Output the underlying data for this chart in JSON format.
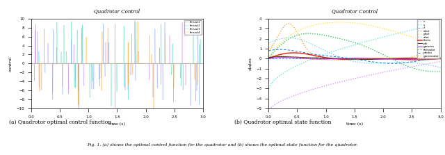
{
  "fig_width": 6.4,
  "fig_height": 2.23,
  "dpi": 100,
  "left_title": "Quadrotor Control",
  "left_xlabel": "time (s)",
  "left_ylabel": "control",
  "left_xlim": [
    0,
    3
  ],
  "left_ylim": [
    -10,
    10
  ],
  "left_yticks": [
    -10,
    -8,
    -6,
    -4,
    -2,
    0,
    2,
    4,
    6,
    8,
    10
  ],
  "left_xticks": [
    0,
    0.5,
    1,
    1.5,
    2,
    2.5,
    3
  ],
  "left_legend": [
    "thrust1",
    "thrust2",
    "thrust3",
    "thrust4"
  ],
  "left_colors": [
    "#cc88ff",
    "#44ddbb",
    "#88aaff",
    "#ffaa22"
  ],
  "left_markers": [
    "o",
    "s",
    "x",
    "^"
  ],
  "right_title": "Quadrotor Control",
  "right_xlabel": "time (s)",
  "right_ylabel": "states",
  "right_xlim": [
    0,
    3
  ],
  "right_ylim": [
    -5,
    4
  ],
  "right_xticks": [
    0,
    0.5,
    1,
    1.5,
    2,
    2.5,
    3
  ],
  "right_legend": [
    "x",
    "y",
    "z",
    "xdot",
    "ydot",
    "zdot",
    "theta",
    "phi",
    "gamma",
    "thetadot",
    "phidot",
    "gammadot"
  ],
  "right_colors": [
    "#cc77ff",
    "#44ddcc",
    "#5588ff",
    "#ff8800",
    "#ffdd00",
    "#55ccff",
    "#ee1100",
    "#222222",
    "#aa00ee",
    "#00bb44",
    "#0088ee",
    "#ffaa00"
  ],
  "right_markers": [
    ".",
    ".",
    "x",
    ".",
    ".",
    ".",
    "o",
    "^",
    "s",
    ".",
    "x",
    "."
  ],
  "caption_left": "(a) Quadrotor optimal control function",
  "caption_right": "(b) Quadrotor optimal state function",
  "caption_bottom": "Fig. 1. (a) shows the optimal control function for the quadrotor and (b) shows the optimal state function for the quadrotor."
}
